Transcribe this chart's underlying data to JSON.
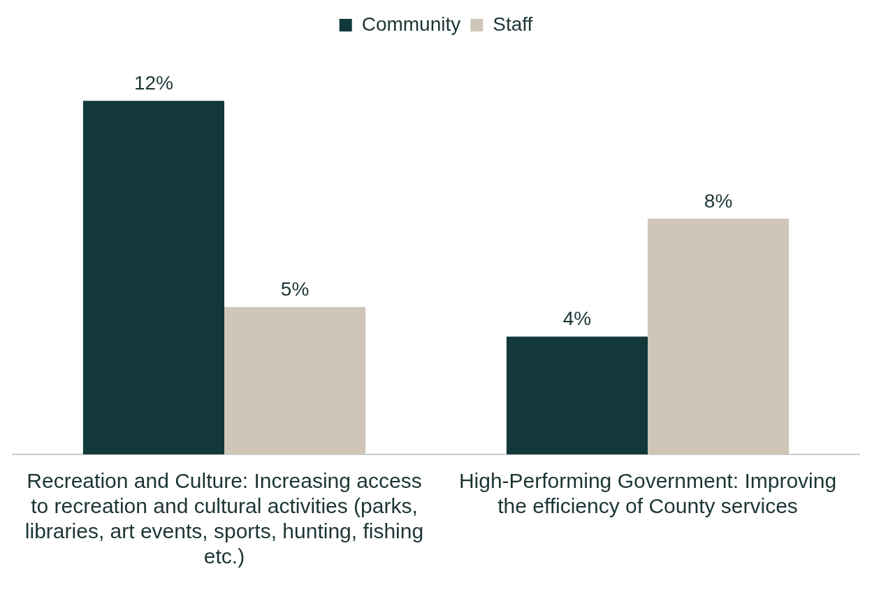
{
  "chart_data": {
    "type": "bar",
    "categories": [
      "Recreation and Culture: Increasing access to recreation and cultural activities (parks, libraries, art events, sports, hunting, fishing etc.)",
      "High-Performing Government: Improving the efficiency of County services"
    ],
    "series": [
      {
        "name": "Community",
        "color": "#12383a",
        "values": [
          12,
          4
        ],
        "value_labels": [
          "12%",
          "4%"
        ]
      },
      {
        "name": "Staff",
        "color": "#cfc6b8",
        "values": [
          5,
          8
        ],
        "value_labels": [
          "5%",
          "8%"
        ]
      }
    ],
    "tick_labels": "x",
    "grid": false,
    "legend": "top"
  }
}
